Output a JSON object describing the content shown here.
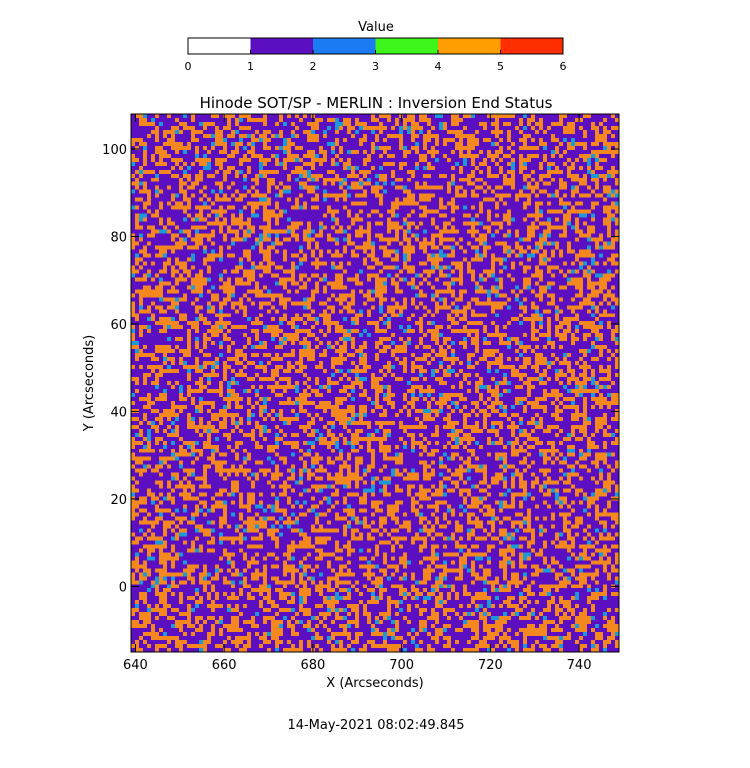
{
  "chart_data": {
    "type": "heatmap",
    "title": "Hinode SOT/SP - MERLIN : Inversion End Status",
    "xlabel": "X (Arcseconds)",
    "ylabel": "Y (Arcseconds)",
    "xlim": [
      639,
      749
    ],
    "ylim": [
      -15,
      108
    ],
    "x_ticks": [
      "640",
      "660",
      "680",
      "700",
      "720",
      "740"
    ],
    "x_tick_values": [
      640,
      660,
      680,
      700,
      720,
      740
    ],
    "y_ticks": [
      "0",
      "20",
      "40",
      "60",
      "80",
      "100"
    ],
    "y_tick_values": [
      0,
      20,
      40,
      60,
      80,
      100
    ],
    "colorbar": {
      "label": "Value",
      "range": [
        0,
        6
      ],
      "tick_labels": [
        "0",
        "1",
        "2",
        "3",
        "4",
        "5",
        "6"
      ],
      "segments": [
        {
          "from": 0,
          "to": 1,
          "color": "#ffffff"
        },
        {
          "from": 1,
          "to": 2,
          "color": "#5b0fc0"
        },
        {
          "from": 2,
          "to": 3,
          "color": "#1a7cf0"
        },
        {
          "from": 3,
          "to": 4,
          "color": "#3df51a"
        },
        {
          "from": 4,
          "to": 5,
          "color": "#ff9e00"
        },
        {
          "from": 5,
          "to": 6,
          "color": "#ff2e00"
        }
      ]
    },
    "value_distribution": [
      {
        "value": 1,
        "fraction": 0.55,
        "color": "#5b0fc0"
      },
      {
        "value": 4,
        "fraction": 0.4,
        "color": "#f5871f"
      },
      {
        "value": 2,
        "fraction": 0.05,
        "color": "#1a9ad8"
      }
    ],
    "timestamp": "14-May-2021 08:02:49.845"
  }
}
